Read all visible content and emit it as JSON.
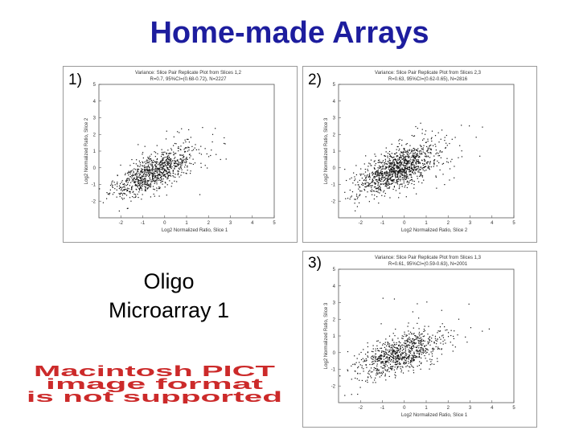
{
  "page": {
    "title": "Home-made Arrays"
  },
  "caption": {
    "line1": "Oligo",
    "line2": "Microarray 1"
  },
  "pict_notice": {
    "lines": [
      "Macintosh PICT",
      "image format",
      "is not supported"
    ],
    "color": "#cc2a2a"
  },
  "panels": [
    {
      "number": "1)",
      "plot_title": "Variance: Slice Pair Replicate Plot from Slices 1,2",
      "stats": "R=0.7, 95%CI=(0.68-0.72), N=2227",
      "xlabel": "Log2 Normalized Ratio, Slice 1",
      "ylabel": "Log2 Normalized Ratio, Slice 2"
    },
    {
      "number": "2)",
      "plot_title": "Variance: Slice Pair Replicate Plot from Slices 2,3",
      "stats": "R=0.63, 95%CI=(0.62-0.65), N=2816",
      "xlabel": "Log2 Normalized Ratio, Slice 2",
      "ylabel": "Log2 Normalized Ratio, Slice 3"
    },
    {
      "number": "3)",
      "plot_title": "Variance: Slice Pair Replicate Plot from Slices 1,3",
      "stats": "R=0.61, 95%CI=(0.59-0.63), N=2001",
      "xlabel": "Log2 Normalized Ratio, Slice 1",
      "ylabel": "Log2 Normalized Ratio, Slice 3"
    }
  ],
  "chart_data": [
    {
      "type": "scatter",
      "title": "Variance: Slice Pair Replicate Plot from Slices 1,2",
      "subtitle": "R=0.7, 95%CI=(0.68-0.72), N=2227",
      "xlabel": "Log2 Normalized Ratio, Slice 1",
      "ylabel": "Log2 Normalized Ratio, Slice 2",
      "xlim": [
        -3,
        5
      ],
      "ylim": [
        -3,
        5
      ],
      "xticks": [
        "-2",
        "-1",
        "0",
        "1",
        "2",
        "3",
        "4",
        "5"
      ],
      "yticks": [
        "-2",
        "-1",
        "0",
        "1",
        "2",
        "3",
        "4",
        "5"
      ],
      "center": [
        -0.5,
        -0.3
      ],
      "spread": [
        0.9,
        0.7
      ],
      "r": 0.7,
      "n": 2227
    },
    {
      "type": "scatter",
      "title": "Variance: Slice Pair Replicate Plot from Slices 2,3",
      "subtitle": "R=0.63, 95%CI=(0.62-0.65), N=2816",
      "xlabel": "Log2 Normalized Ratio, Slice 2",
      "ylabel": "Log2 Normalized Ratio, Slice 3",
      "xlim": [
        -3,
        5
      ],
      "ylim": [
        -3,
        5
      ],
      "xticks": [
        "-2",
        "-1",
        "0",
        "1",
        "2",
        "3",
        "4",
        "5"
      ],
      "yticks": [
        "-2",
        "-1",
        "0",
        "1",
        "2",
        "3",
        "4",
        "5"
      ],
      "center": [
        -0.3,
        -0.1
      ],
      "spread": [
        0.9,
        0.75
      ],
      "r": 0.63,
      "n": 2816
    },
    {
      "type": "scatter",
      "title": "Variance: Slice Pair Replicate Plot from Slices 1,3",
      "subtitle": "R=0.61, 95%CI=(0.59-0.63), N=2001",
      "xlabel": "Log2 Normalized Ratio, Slice 1",
      "ylabel": "Log2 Normalized Ratio, Slice 3",
      "xlim": [
        -3,
        5
      ],
      "ylim": [
        -3,
        5
      ],
      "xticks": [
        "-2",
        "-1",
        "0",
        "1",
        "2",
        "3",
        "4",
        "5"
      ],
      "yticks": [
        "-2",
        "-1",
        "0",
        "1",
        "2",
        "3",
        "4",
        "5"
      ],
      "center": [
        -0.2,
        -0.1
      ],
      "spread": [
        1.0,
        0.7
      ],
      "r": 0.61,
      "n": 2001
    }
  ]
}
